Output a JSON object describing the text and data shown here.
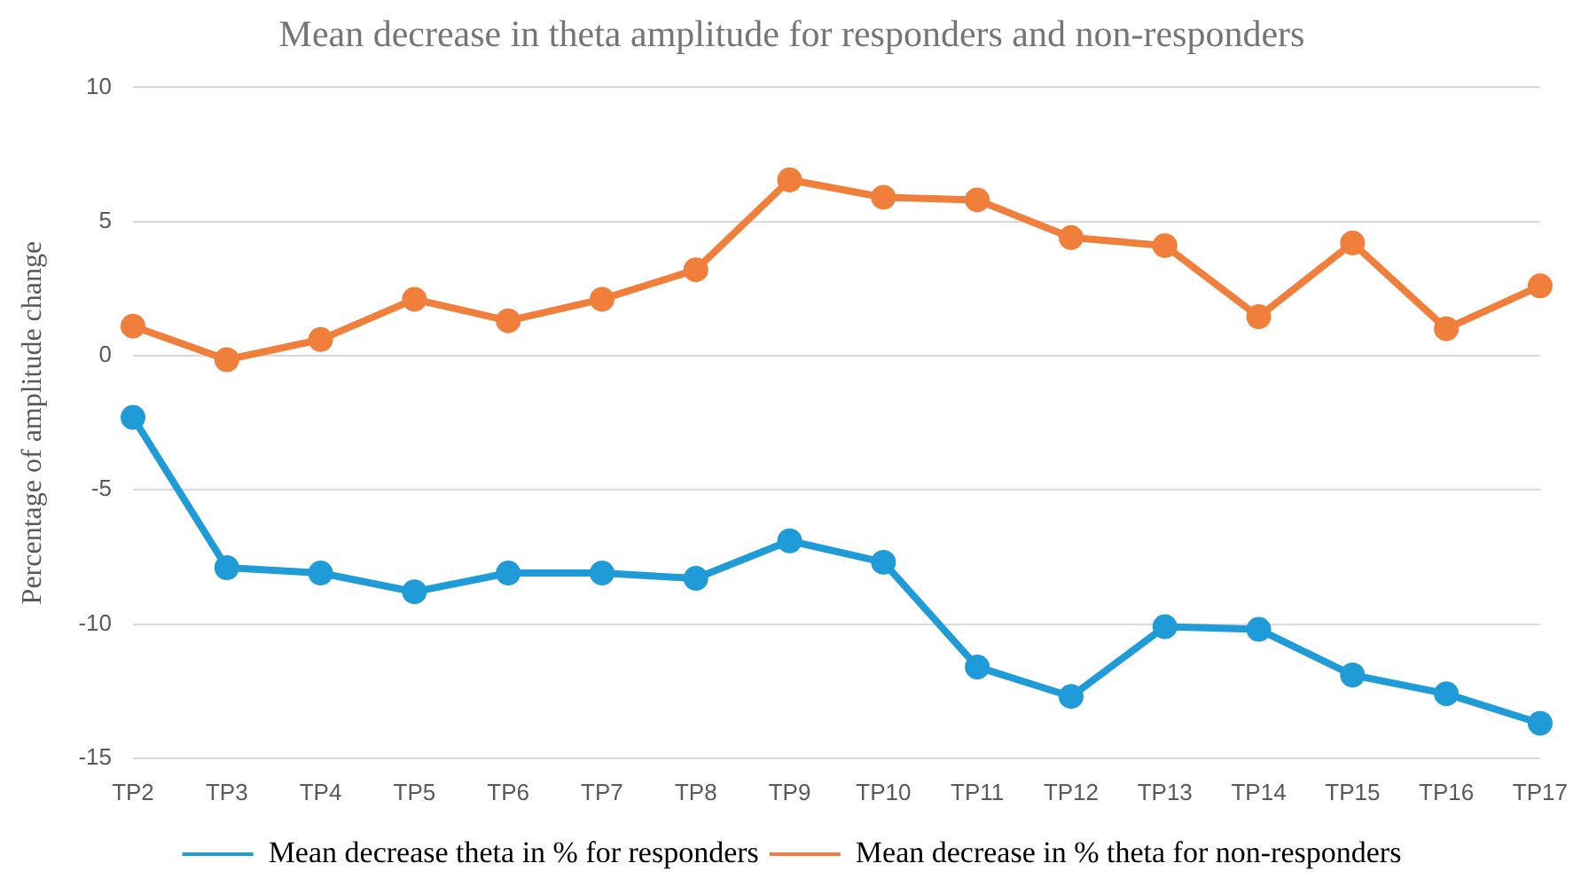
{
  "chart_data": {
    "type": "line",
    "title": "Mean decrease in theta amplitude for responders and non-responders",
    "ylabel": "Percentage of amplitude change",
    "categories": [
      "TP2",
      "TP3",
      "TP4",
      "TP5",
      "TP6",
      "TP7",
      "TP8",
      "TP9",
      "TP10",
      "TP11",
      "TP12",
      "TP13",
      "TP14",
      "TP15",
      "TP16",
      "TP17"
    ],
    "series": [
      {
        "name": "Mean decrease theta in % for responders",
        "color": "#1f9bd7",
        "values": [
          -2.3,
          -7.9,
          -8.1,
          -8.8,
          -8.1,
          -8.1,
          -8.3,
          -6.9,
          -7.7,
          -11.6,
          -12.7,
          -10.1,
          -10.2,
          -11.9,
          -12.6,
          -13.7
        ]
      },
      {
        "name": "Mean decrease in % theta for non-responders",
        "color": "#f07f3c",
        "values": [
          1.1,
          -0.15,
          0.6,
          2.1,
          1.3,
          2.1,
          3.2,
          6.55,
          5.9,
          5.8,
          4.4,
          4.1,
          1.45,
          4.2,
          1.0,
          2.6
        ]
      }
    ],
    "ylim": [
      -15,
      10
    ],
    "yticks": [
      -15,
      -10,
      -5,
      0,
      5,
      10
    ],
    "grid": "y",
    "legend": "bottom",
    "marker": "circle",
    "line_style": "solid"
  }
}
